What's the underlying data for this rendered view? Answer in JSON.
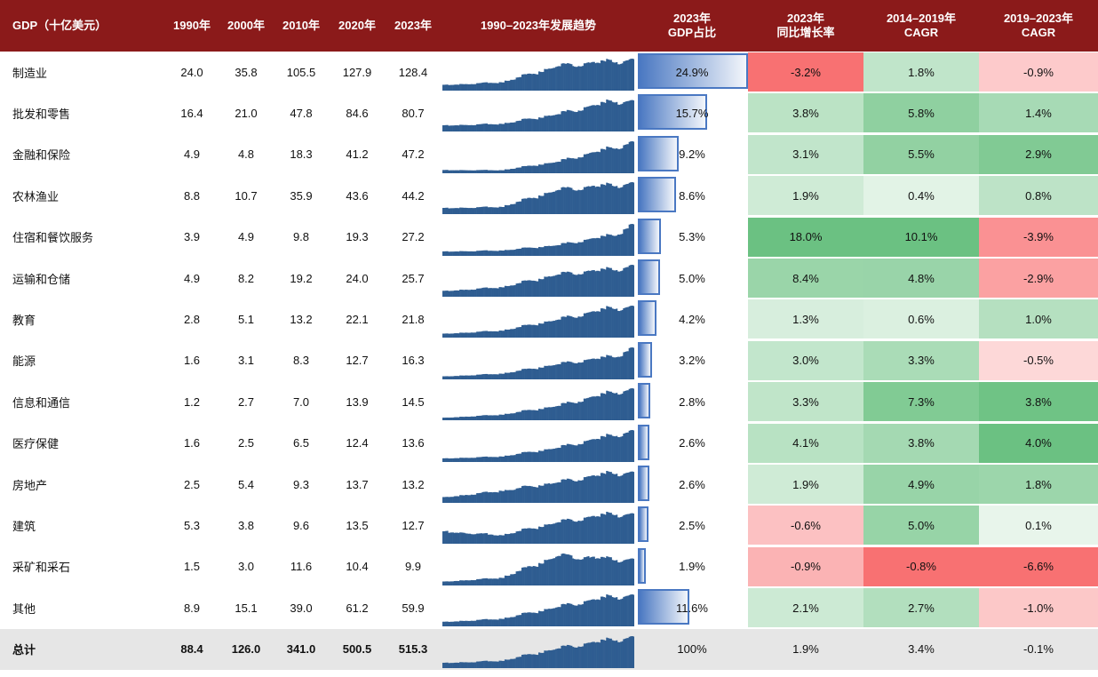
{
  "table": {
    "headers": {
      "sector": "GDP（十亿美元）",
      "y1990": "1990年",
      "y2000": "2000年",
      "y2010": "2010年",
      "y2020": "2020年",
      "y2023": "2023年",
      "trend": "1990–2023年发展趋势",
      "share_l1": "2023年",
      "share_l2": "GDP占比",
      "yoy_l1": "2023年",
      "yoy_l2": "同比增长率",
      "cagr1_l1": "2014–2019年",
      "cagr1_l2": "CAGR",
      "cagr2_l1": "2019–2023年",
      "cagr2_l2": "CAGR"
    },
    "colors": {
      "header_bg": "#8b1a1a",
      "spark": "#2f5d91",
      "bar": "#4a78c2",
      "positive": "#63be7b",
      "negative": "#f8696b",
      "total_bg": "#e6e6e6"
    },
    "rows": [
      {
        "name": "制造业",
        "y1990": "24.0",
        "y2000": "35.8",
        "y2010": "105.5",
        "y2020": "127.9",
        "y2023": "128.4",
        "share": "24.9%",
        "share_value": 24.9,
        "yoy": "-3.2%",
        "yoy_value": -3.2,
        "cagr1": "1.8%",
        "cagr1_value": 1.8,
        "cagr2": "-0.9%",
        "cagr2_value": -0.9
      },
      {
        "name": "批发和零售",
        "y1990": "16.4",
        "y2000": "21.0",
        "y2010": "47.8",
        "y2020": "84.6",
        "y2023": "80.7",
        "share": "15.7%",
        "share_value": 15.7,
        "yoy": "3.8%",
        "yoy_value": 3.8,
        "cagr1": "5.8%",
        "cagr1_value": 5.8,
        "cagr2": "1.4%",
        "cagr2_value": 1.4
      },
      {
        "name": "金融和保险",
        "y1990": "4.9",
        "y2000": "4.8",
        "y2010": "18.3",
        "y2020": "41.2",
        "y2023": "47.2",
        "share": "9.2%",
        "share_value": 9.2,
        "yoy": "3.1%",
        "yoy_value": 3.1,
        "cagr1": "5.5%",
        "cagr1_value": 5.5,
        "cagr2": "2.9%",
        "cagr2_value": 2.9
      },
      {
        "name": "农林渔业",
        "y1990": "8.8",
        "y2000": "10.7",
        "y2010": "35.9",
        "y2020": "43.6",
        "y2023": "44.2",
        "share": "8.6%",
        "share_value": 8.6,
        "yoy": "1.9%",
        "yoy_value": 1.9,
        "cagr1": "0.4%",
        "cagr1_value": 0.4,
        "cagr2": "0.8%",
        "cagr2_value": 0.8
      },
      {
        "name": "住宿和餐饮服务",
        "y1990": "3.9",
        "y2000": "4.9",
        "y2010": "9.8",
        "y2020": "19.3",
        "y2023": "27.2",
        "share": "5.3%",
        "share_value": 5.3,
        "yoy": "18.0%",
        "yoy_value": 18.0,
        "cagr1": "10.1%",
        "cagr1_value": 10.1,
        "cagr2": "-3.9%",
        "cagr2_value": -3.9
      },
      {
        "name": "运输和仓储",
        "y1990": "4.9",
        "y2000": "8.2",
        "y2010": "19.2",
        "y2020": "24.0",
        "y2023": "25.7",
        "share": "5.0%",
        "share_value": 5.0,
        "yoy": "8.4%",
        "yoy_value": 8.4,
        "cagr1": "4.8%",
        "cagr1_value": 4.8,
        "cagr2": "-2.9%",
        "cagr2_value": -2.9
      },
      {
        "name": "教育",
        "y1990": "2.8",
        "y2000": "5.1",
        "y2010": "13.2",
        "y2020": "22.1",
        "y2023": "21.8",
        "share": "4.2%",
        "share_value": 4.2,
        "yoy": "1.3%",
        "yoy_value": 1.3,
        "cagr1": "0.6%",
        "cagr1_value": 0.6,
        "cagr2": "1.0%",
        "cagr2_value": 1.0
      },
      {
        "name": "能源",
        "y1990": "1.6",
        "y2000": "3.1",
        "y2010": "8.3",
        "y2020": "12.7",
        "y2023": "16.3",
        "share": "3.2%",
        "share_value": 3.2,
        "yoy": "3.0%",
        "yoy_value": 3.0,
        "cagr1": "3.3%",
        "cagr1_value": 3.3,
        "cagr2": "-0.5%",
        "cagr2_value": -0.5
      },
      {
        "name": "信息和通信",
        "y1990": "1.2",
        "y2000": "2.7",
        "y2010": "7.0",
        "y2020": "13.9",
        "y2023": "14.5",
        "share": "2.8%",
        "share_value": 2.8,
        "yoy": "3.3%",
        "yoy_value": 3.3,
        "cagr1": "7.3%",
        "cagr1_value": 7.3,
        "cagr2": "3.8%",
        "cagr2_value": 3.8
      },
      {
        "name": "医疗保健",
        "y1990": "1.6",
        "y2000": "2.5",
        "y2010": "6.5",
        "y2020": "12.4",
        "y2023": "13.6",
        "share": "2.6%",
        "share_value": 2.6,
        "yoy": "4.1%",
        "yoy_value": 4.1,
        "cagr1": "3.8%",
        "cagr1_value": 3.8,
        "cagr2": "4.0%",
        "cagr2_value": 4.0
      },
      {
        "name": "房地产",
        "y1990": "2.5",
        "y2000": "5.4",
        "y2010": "9.3",
        "y2020": "13.7",
        "y2023": "13.2",
        "share": "2.6%",
        "share_value": 2.6,
        "yoy": "1.9%",
        "yoy_value": 1.9,
        "cagr1": "4.9%",
        "cagr1_value": 4.9,
        "cagr2": "1.8%",
        "cagr2_value": 1.8
      },
      {
        "name": "建筑",
        "y1990": "5.3",
        "y2000": "3.8",
        "y2010": "9.6",
        "y2020": "13.5",
        "y2023": "12.7",
        "share": "2.5%",
        "share_value": 2.5,
        "yoy": "-0.6%",
        "yoy_value": -0.6,
        "cagr1": "5.0%",
        "cagr1_value": 5.0,
        "cagr2": "0.1%",
        "cagr2_value": 0.1
      },
      {
        "name": "采矿和采石",
        "y1990": "1.5",
        "y2000": "3.0",
        "y2010": "11.6",
        "y2020": "10.4",
        "y2023": "9.9",
        "share": "1.9%",
        "share_value": 1.9,
        "yoy": "-0.9%",
        "yoy_value": -0.9,
        "cagr1": "-0.8%",
        "cagr1_value": -0.8,
        "cagr2": "-6.6%",
        "cagr2_value": -6.6
      },
      {
        "name": "其他",
        "y1990": "8.9",
        "y2000": "15.1",
        "y2010": "39.0",
        "y2020": "61.2",
        "y2023": "59.9",
        "share": "11.6%",
        "share_value": 11.6,
        "yoy": "2.1%",
        "yoy_value": 2.1,
        "cagr1": "2.7%",
        "cagr1_value": 2.7,
        "cagr2": "-1.0%",
        "cagr2_value": -1.0
      }
    ],
    "total": {
      "name": "总计",
      "y1990": "88.4",
      "y2000": "126.0",
      "y2010": "341.0",
      "y2020": "500.5",
      "y2023": "515.3",
      "share": "100%",
      "yoy": "1.9%",
      "cagr1": "3.4%",
      "cagr2": "-0.1%"
    }
  },
  "chart_data": {
    "type": "table",
    "title": "",
    "columns": [
      "GDP（十亿美元）",
      "1990年",
      "2000年",
      "2010年",
      "2020年",
      "2023年",
      "1990–2023年发展趋势",
      "2023年 GDP占比",
      "2023年 同比增长率",
      "2014–2019年 CAGR",
      "2019–2023年 CAGR"
    ],
    "categories": [
      "制造业",
      "批发和零售",
      "金融和保险",
      "农林渔业",
      "住宿和餐饮服务",
      "运输和仓储",
      "教育",
      "能源",
      "信息和通信",
      "医疗保健",
      "房地产",
      "建筑",
      "采矿和采石",
      "其他",
      "总计"
    ],
    "series": [
      {
        "name": "1990年",
        "values": [
          24.0,
          16.4,
          4.9,
          8.8,
          3.9,
          4.9,
          2.8,
          1.6,
          1.2,
          1.6,
          2.5,
          5.3,
          1.5,
          8.9,
          88.4
        ]
      },
      {
        "name": "2000年",
        "values": [
          35.8,
          21.0,
          4.8,
          10.7,
          4.9,
          8.2,
          5.1,
          3.1,
          2.7,
          2.5,
          5.4,
          3.8,
          3.0,
          15.1,
          126.0
        ]
      },
      {
        "name": "2010年",
        "values": [
          105.5,
          47.8,
          18.3,
          35.9,
          9.8,
          19.2,
          13.2,
          8.3,
          7.0,
          6.5,
          9.3,
          9.6,
          11.6,
          39.0,
          341.0
        ]
      },
      {
        "name": "2020年",
        "values": [
          127.9,
          84.6,
          41.2,
          43.6,
          19.3,
          24.0,
          22.1,
          12.7,
          13.9,
          12.4,
          13.7,
          13.5,
          10.4,
          61.2,
          500.5
        ]
      },
      {
        "name": "2023年",
        "values": [
          128.4,
          80.7,
          47.2,
          44.2,
          27.2,
          25.7,
          21.8,
          16.3,
          14.5,
          13.6,
          13.2,
          12.7,
          9.9,
          59.9,
          515.3
        ]
      },
      {
        "name": "2023年 GDP占比",
        "values": [
          24.9,
          15.7,
          9.2,
          8.6,
          5.3,
          5.0,
          4.2,
          3.2,
          2.8,
          2.6,
          2.6,
          2.5,
          1.9,
          11.6,
          100
        ]
      },
      {
        "name": "2023年 同比增长率",
        "values": [
          -3.2,
          3.8,
          3.1,
          1.9,
          18.0,
          8.4,
          1.3,
          3.0,
          3.3,
          4.1,
          1.9,
          -0.6,
          -0.9,
          2.1,
          1.9
        ]
      },
      {
        "name": "2014–2019年 CAGR",
        "values": [
          1.8,
          5.8,
          5.5,
          0.4,
          10.1,
          4.8,
          0.6,
          3.3,
          7.3,
          3.8,
          4.9,
          5.0,
          -0.8,
          2.7,
          3.4
        ]
      },
      {
        "name": "2019–2023年 CAGR",
        "values": [
          -0.9,
          1.4,
          2.9,
          0.8,
          -3.9,
          -2.9,
          1.0,
          -0.5,
          3.8,
          4.0,
          1.8,
          0.1,
          -6.6,
          -1.0,
          -0.1
        ]
      }
    ]
  }
}
